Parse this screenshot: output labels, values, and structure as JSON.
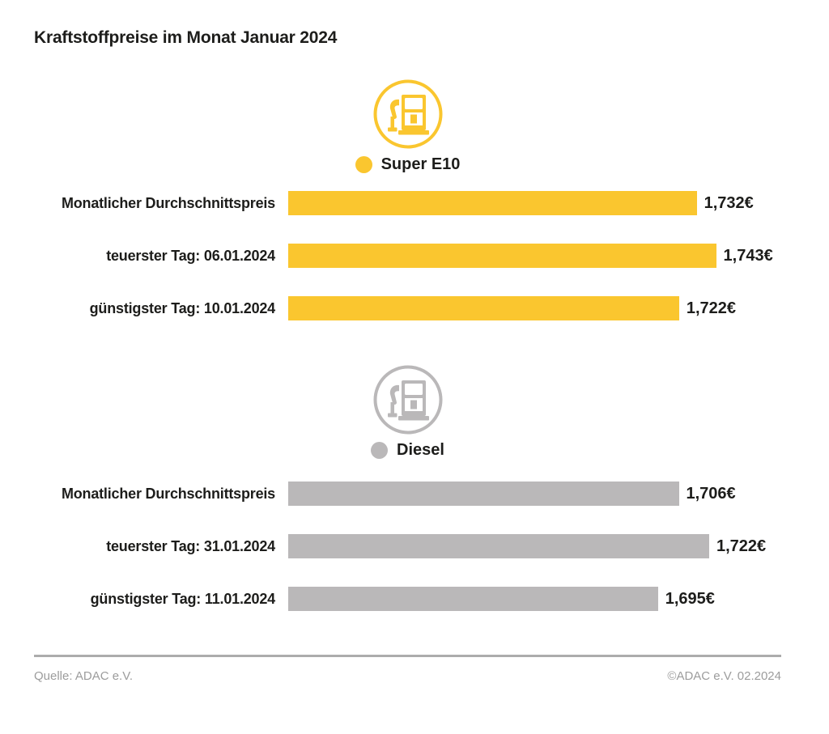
{
  "title": "Kraftstoffpreise im Monat Januar 2024",
  "footer": {
    "source": "Quelle: ADAC e.V.",
    "copyright": "©ADAC e.V. 02.2024"
  },
  "colors": {
    "super_e10": "#FAC62F",
    "diesel": "#BAB8B9",
    "text": "#1D1D1B",
    "footer_text": "#9C9C9C",
    "divider": "#ACACAC",
    "background": "#FFFFFF"
  },
  "icons": {
    "super_e10": "fuel-pump-icon",
    "diesel": "fuel-pump-icon",
    "legend_super": "circle-dot-icon",
    "legend_diesel": "circle-dot-icon"
  },
  "chart_data": [
    {
      "type": "bar",
      "orientation": "horizontal",
      "series_name": "Super E10",
      "color": "#FAC62F",
      "categories": [
        "Monatlicher Durchschnittspreis",
        "teuerster Tag: 06.01.2024",
        "günstigster Tag: 10.01.2024"
      ],
      "values": [
        1.732,
        1.743,
        1.722
      ],
      "value_labels": [
        "1,732€",
        "1,743€",
        "1,722€"
      ],
      "xlim": [
        1.5,
        1.78
      ],
      "grid": false,
      "legend_position": "top-center"
    },
    {
      "type": "bar",
      "orientation": "horizontal",
      "series_name": "Diesel",
      "color": "#BAB8B9",
      "categories": [
        "Monatlicher Durchschnittspreis",
        "teuerster Tag: 31.01.2024",
        "günstigster Tag: 11.01.2024"
      ],
      "values": [
        1.706,
        1.722,
        1.695
      ],
      "value_labels": [
        "1,706€",
        "1,722€",
        "1,695€"
      ],
      "xlim": [
        1.5,
        1.76
      ],
      "grid": false,
      "legend_position": "top-center"
    }
  ]
}
